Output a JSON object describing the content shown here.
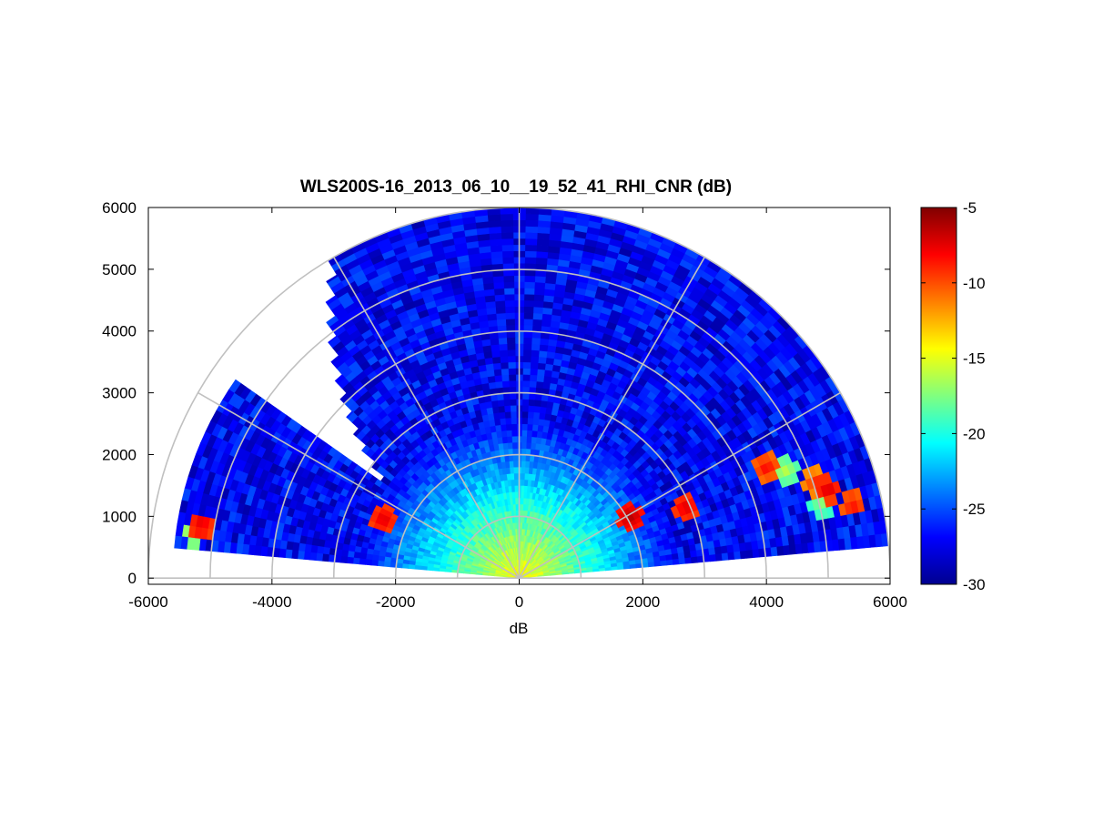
{
  "chart_data": {
    "type": "heatmap",
    "subtype": "polar-rhi-sector",
    "title": "WLS200S-16_2013_06_10__19_52_41_RHI_CNR (dB)",
    "xlabel": "dB",
    "ylabel": "",
    "xlim": [
      -6000,
      6000
    ],
    "ylim": [
      -100,
      6000
    ],
    "x_ticks": [
      "-6000",
      "-4000",
      "-2000",
      "0",
      "2000",
      "4000",
      "6000"
    ],
    "y_ticks": [
      "0",
      "1000",
      "2000",
      "3000",
      "4000",
      "5000",
      "6000"
    ],
    "range_rings": [
      1000,
      2000,
      3000,
      4000,
      5000,
      6000
    ],
    "angle_spokes_deg": [
      0,
      30,
      60,
      90,
      120,
      150,
      180
    ],
    "sector_start_deg": 5,
    "sector_end_deg": 175,
    "colorbar": {
      "colormap": "jet",
      "min": -30,
      "max": -5,
      "ticks": [
        "-5",
        "-10",
        "-15",
        "-20",
        "-25",
        "-30"
      ]
    },
    "grid": true,
    "hotspots": [
      {
        "x": -5150,
        "y": 850,
        "value": -7
      },
      {
        "x": -5250,
        "y": 750,
        "value": -15
      },
      {
        "x": -2200,
        "y": 950,
        "value": -7
      },
      {
        "x": 1800,
        "y": 1000,
        "value": -6
      },
      {
        "x": 2700,
        "y": 1150,
        "value": -7
      },
      {
        "x": 4000,
        "y": 1800,
        "value": -8
      },
      {
        "x": 4300,
        "y": 1750,
        "value": -16
      },
      {
        "x": 4800,
        "y": 1550,
        "value": -9
      },
      {
        "x": 5000,
        "y": 1450,
        "value": -7
      },
      {
        "x": 5400,
        "y": 1200,
        "value": -8
      },
      {
        "x": 4900,
        "y": 1200,
        "value": -17
      }
    ]
  }
}
